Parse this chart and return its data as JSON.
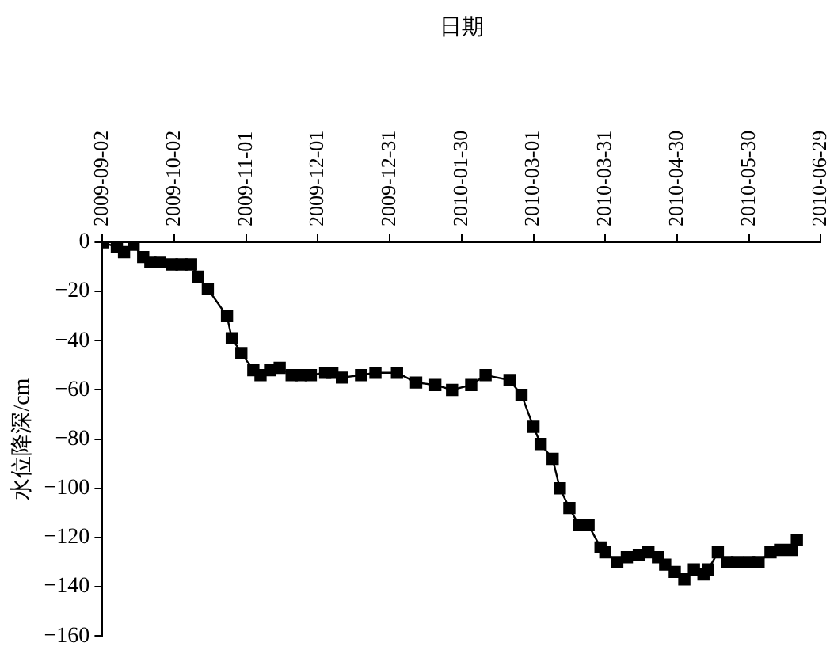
{
  "chart_data": {
    "type": "line",
    "xlabel": "日期",
    "ylabel": "水位降深/cm",
    "x": [
      "2009-09-02",
      "2009-09-08",
      "2009-09-11",
      "2009-09-15",
      "2009-09-19",
      "2009-09-22",
      "2009-09-26",
      "2009-10-01",
      "2009-10-05",
      "2009-10-09",
      "2009-10-12",
      "2009-10-16",
      "2009-10-24",
      "2009-10-26",
      "2009-10-30",
      "2009-11-04",
      "2009-11-07",
      "2009-11-11",
      "2009-11-15",
      "2009-11-20",
      "2009-11-24",
      "2009-11-28",
      "2009-12-04",
      "2009-12-07",
      "2009-12-11",
      "2009-12-19",
      "2009-12-25",
      "2010-01-03",
      "2010-01-11",
      "2010-01-19",
      "2010-01-26",
      "2010-02-03",
      "2010-02-09",
      "2010-02-19",
      "2010-02-24",
      "2010-03-01",
      "2010-03-04",
      "2010-03-09",
      "2010-03-12",
      "2010-03-16",
      "2010-03-20",
      "2010-03-24",
      "2010-03-29",
      "2010-03-31",
      "2010-04-05",
      "2010-04-09",
      "2010-04-14",
      "2010-04-18",
      "2010-04-22",
      "2010-04-25",
      "2010-04-29",
      "2010-05-03",
      "2010-05-07",
      "2010-05-11",
      "2010-05-13",
      "2010-05-17",
      "2010-05-21",
      "2010-05-25",
      "2010-05-30",
      "2010-06-03",
      "2010-06-08",
      "2010-06-12",
      "2010-06-17",
      "2010-06-19"
    ],
    "series": [
      {
        "color": "#000000",
        "values": [
          0,
          -2,
          -4,
          -1,
          -6,
          -8,
          -8,
          -9,
          -9,
          -9,
          -14,
          -19,
          -30,
          -39,
          -45,
          -52,
          -54,
          -52,
          -51,
          -54,
          -54,
          -54,
          -53,
          -53,
          -55,
          -54,
          -53,
          -53,
          -57,
          -58,
          -60,
          -58,
          -54,
          -56,
          -62,
          -75,
          -82,
          -88,
          -100,
          -108,
          -115,
          -115,
          -124,
          -126,
          -130,
          -128,
          -127,
          -126,
          -128,
          -131,
          -134,
          -137,
          -133,
          -135,
          -133,
          -126,
          -130,
          -130,
          -130,
          -130,
          -126,
          -125,
          -125,
          -121
        ]
      }
    ],
    "xlim": [
      "2009-09-02",
      "2010-06-29"
    ],
    "xticks": [
      "2009-09-02",
      "2009-10-02",
      "2009-11-01",
      "2009-12-01",
      "2009-12-31",
      "2010-01-30",
      "2010-03-01",
      "2010-03-31",
      "2010-04-30",
      "2010-05-30",
      "2010-06-29"
    ],
    "ylim": [
      -160,
      0
    ],
    "yticks": [
      0,
      -20,
      -40,
      -60,
      -80,
      -100,
      -120,
      -140,
      -160
    ],
    "grid": false,
    "legend": false,
    "marker": "square",
    "line_style": "solid"
  }
}
